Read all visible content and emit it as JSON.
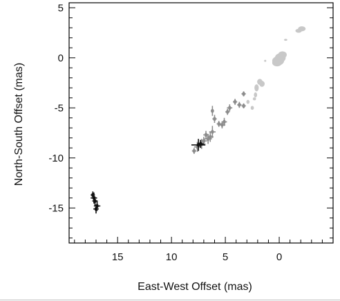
{
  "chart_data": {
    "type": "scatter",
    "title": "",
    "xlabel": "East-West Offset (mas)",
    "ylabel": "North-South Offset (mas)",
    "xlim": [
      19.5,
      -5
    ],
    "ylim": [
      -18.5,
      5.5
    ],
    "x_inverted": true,
    "xticks": [
      15,
      10,
      5,
      0
    ],
    "yticks": [
      5,
      0,
      -5,
      -10,
      -15
    ],
    "xtick_labels": [
      "15",
      "10",
      "5",
      "0"
    ],
    "ytick_labels": [
      "5",
      "0",
      "-5",
      "-10",
      "-15"
    ],
    "grid": false,
    "legend": "none",
    "series": [
      {
        "color": "#c8c8c8",
        "marker": "blob",
        "points": [
          {
            "x": -2.1,
            "y": 2.9,
            "xerr": 0.35,
            "yerr": 0.25
          },
          {
            "x": -1.8,
            "y": 2.7,
            "xerr": 0.3,
            "yerr": 0.2
          },
          {
            "x": -0.6,
            "y": 1.8,
            "xerr": 0.15,
            "yerr": 0.1
          },
          {
            "x": 0.1,
            "y": -0.3,
            "xerr": 0.55,
            "yerr": 0.45
          },
          {
            "x": -0.1,
            "y": 0.0,
            "xerr": 0.5,
            "yerr": 0.45
          },
          {
            "x": -0.3,
            "y": 0.3,
            "xerr": 0.4,
            "yerr": 0.35
          },
          {
            "x": 0.2,
            "y": -0.5,
            "xerr": 0.45,
            "yerr": 0.35
          },
          {
            "x": 1.3,
            "y": -0.3,
            "xerr": 0.1,
            "yerr": 0.1
          },
          {
            "x": 1.6,
            "y": -2.6,
            "xerr": 0.25,
            "yerr": 0.3
          },
          {
            "x": 1.8,
            "y": -2.4,
            "xerr": 0.25,
            "yerr": 0.3
          },
          {
            "x": 2.1,
            "y": -3.0,
            "xerr": 0.2,
            "yerr": 0.35
          },
          {
            "x": 2.2,
            "y": -3.7,
            "xerr": 0.15,
            "yerr": 0.25
          },
          {
            "x": 2.5,
            "y": -5.0,
            "xerr": 0.15,
            "yerr": 0.2
          },
          {
            "x": 2.3,
            "y": -4.1,
            "xerr": 0.15,
            "yerr": 0.15
          },
          {
            "x": 2.9,
            "y": -4.4,
            "xerr": 0.15,
            "yerr": 0.2
          }
        ]
      },
      {
        "color": "#8c8c8c",
        "marker": "cross",
        "points": [
          {
            "x": 3.3,
            "y": -3.6,
            "xerr": 0.2,
            "yerr": 0.25
          },
          {
            "x": 3.3,
            "y": -4.8,
            "xerr": 0.2,
            "yerr": 0.25
          },
          {
            "x": 3.7,
            "y": -4.7,
            "xerr": 0.2,
            "yerr": 0.3
          },
          {
            "x": 4.1,
            "y": -4.4,
            "xerr": 0.2,
            "yerr": 0.3
          },
          {
            "x": 4.6,
            "y": -5.0,
            "xerr": 0.25,
            "yerr": 0.35
          },
          {
            "x": 4.8,
            "y": -5.4,
            "xerr": 0.2,
            "yerr": 0.3
          },
          {
            "x": 5.1,
            "y": -6.4,
            "xerr": 0.25,
            "yerr": 0.4
          },
          {
            "x": 5.3,
            "y": -6.7,
            "xerr": 0.3,
            "yerr": 0.35
          },
          {
            "x": 5.6,
            "y": -6.6,
            "xerr": 0.2,
            "yerr": 0.3
          },
          {
            "x": 6.2,
            "y": -5.3,
            "xerr": 0.15,
            "yerr": 0.5
          },
          {
            "x": 6.0,
            "y": -6.1,
            "xerr": 0.2,
            "yerr": 0.4
          },
          {
            "x": 6.2,
            "y": -7.4,
            "xerr": 0.3,
            "yerr": 0.6
          },
          {
            "x": 6.4,
            "y": -7.9,
            "xerr": 0.3,
            "yerr": 0.5
          },
          {
            "x": 6.6,
            "y": -8.1,
            "xerr": 0.35,
            "yerr": 0.5
          },
          {
            "x": 6.8,
            "y": -7.7,
            "xerr": 0.25,
            "yerr": 0.4
          },
          {
            "x": 7.0,
            "y": -8.3,
            "xerr": 0.3,
            "yerr": 0.4
          },
          {
            "x": 7.2,
            "y": -8.6,
            "xerr": 0.35,
            "yerr": 0.5
          },
          {
            "x": 7.6,
            "y": -8.9,
            "xerr": 0.3,
            "yerr": 0.5
          },
          {
            "x": 7.9,
            "y": -9.3,
            "xerr": 0.2,
            "yerr": 0.3
          }
        ]
      },
      {
        "color": "#111111",
        "marker": "cross",
        "points": [
          {
            "x": 7.5,
            "y": -8.7,
            "xerr": 0.65,
            "yerr": 0.6
          },
          {
            "x": 7.3,
            "y": -8.6,
            "xerr": 0.3,
            "yerr": 0.4
          },
          {
            "x": 17.2,
            "y": -14.0,
            "xerr": 0.3,
            "yerr": 0.55
          },
          {
            "x": 17.1,
            "y": -14.3,
            "xerr": 0.25,
            "yerr": 0.45
          },
          {
            "x": 16.9,
            "y": -14.8,
            "xerr": 0.3,
            "yerr": 0.5
          },
          {
            "x": 17.0,
            "y": -15.1,
            "xerr": 0.25,
            "yerr": 0.45
          },
          {
            "x": 17.3,
            "y": -13.7,
            "xerr": 0.2,
            "yerr": 0.35
          }
        ]
      }
    ]
  }
}
